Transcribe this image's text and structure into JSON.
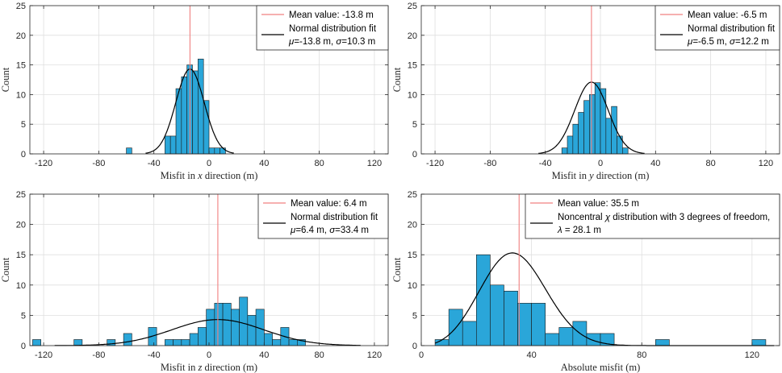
{
  "colors": {
    "bar": "#2aa6d9",
    "mean": "#f08080",
    "fit": "#000000",
    "grid": "#dfdfdf"
  },
  "chart_data": [
    {
      "type": "bar",
      "title": "",
      "xlabel": "Misfit in x direction (m)",
      "xlabel_parts": [
        "Misfit in ",
        "x",
        " direction (m)"
      ],
      "ylabel": "Count",
      "xlim": [
        -130,
        130
      ],
      "ylim": [
        0,
        25
      ],
      "xticks": [
        -120,
        -80,
        -40,
        0,
        40,
        80,
        120
      ],
      "yticks": [
        0,
        5,
        10,
        15,
        20,
        25
      ],
      "bin_edges": [
        -60,
        -56,
        -52,
        -48,
        -44,
        -40,
        -36,
        -32,
        -28,
        -24,
        -20,
        -16,
        -12,
        -8,
        -4,
        0,
        4,
        8,
        12,
        16
      ],
      "counts": [
        1,
        0,
        0,
        0,
        0,
        0,
        0,
        3,
        3,
        11,
        13,
        15,
        14,
        16,
        9,
        1,
        1,
        1,
        0
      ],
      "mean": -13.8,
      "fit": {
        "kind": "normal",
        "mu": -13.8,
        "sigma": 10.3,
        "peak": 14.3,
        "range": [
          -46,
          18
        ]
      },
      "legend": {
        "mean_label": "Mean value: -13.8 m",
        "fit_label": "Normal distribution fit",
        "fit_params_parts": [
          "μ",
          "=-13.8 m, ",
          "σ",
          "=10.3 m"
        ]
      }
    },
    {
      "type": "bar",
      "title": "",
      "xlabel": "Misfit in y direction (m)",
      "xlabel_parts": [
        "Misfit in ",
        "y",
        " direction (m)"
      ],
      "ylabel": "Count",
      "xlim": [
        -130,
        130
      ],
      "ylim": [
        0,
        25
      ],
      "xticks": [
        -120,
        -80,
        -40,
        0,
        40,
        80,
        120
      ],
      "yticks": [
        0,
        5,
        10,
        15,
        20,
        25
      ],
      "bin_edges": [
        -28,
        -24,
        -20,
        -16,
        -12,
        -8,
        -4,
        0,
        4,
        8,
        12,
        16,
        20
      ],
      "counts": [
        1,
        3,
        5,
        7,
        9,
        10,
        12,
        11,
        6,
        8,
        3,
        1
      ],
      "mean": -6.5,
      "fit": {
        "kind": "normal",
        "mu": -6.5,
        "sigma": 12.2,
        "peak": 12.1,
        "range": [
          -45,
          32
        ]
      },
      "legend": {
        "mean_label": "Mean value: -6.5 m",
        "fit_label": "Normal distribution fit",
        "fit_params_parts": [
          "μ",
          "=-6.5 m, ",
          "σ",
          "=12.2 m"
        ]
      }
    },
    {
      "type": "bar",
      "title": "",
      "xlabel": "Misfit in z direction (m)",
      "xlabel_parts": [
        "Misfit in ",
        "z",
        " direction (m)"
      ],
      "ylabel": "Count",
      "xlim": [
        -130,
        130
      ],
      "ylim": [
        0,
        25
      ],
      "xticks": [
        -120,
        -80,
        -40,
        0,
        40,
        80,
        120
      ],
      "yticks": [
        0,
        5,
        10,
        15,
        20,
        25
      ],
      "bin_edges": [
        -128,
        -122,
        -116,
        -110,
        -104,
        -98,
        -92,
        -86,
        -80,
        -74,
        -68,
        -62,
        -56,
        -50,
        -44,
        -38,
        -32,
        -26,
        -20,
        -14,
        -8,
        -2,
        4,
        10,
        16,
        22,
        28,
        34,
        40,
        46,
        52,
        58,
        64,
        70
      ],
      "counts": [
        1,
        0,
        0,
        0,
        0,
        1,
        0,
        0,
        0,
        1,
        0,
        2,
        0,
        0,
        3,
        0,
        1,
        1,
        1,
        2,
        3,
        6,
        7,
        7,
        6,
        8,
        5,
        6,
        2,
        1,
        3,
        1,
        1
      ],
      "mean": 6.4,
      "fit": {
        "kind": "normal",
        "mu": 6.4,
        "sigma": 33.4,
        "peak": 4.3,
        "range": [
          -112,
          110
        ]
      },
      "legend": {
        "mean_label": "Mean value: 6.4 m",
        "fit_label": "Normal distribution fit",
        "fit_params_parts": [
          "μ",
          "=6.4 m, ",
          "σ",
          "=33.4 m"
        ]
      }
    },
    {
      "type": "bar",
      "title": "",
      "xlabel": "Absolute misfit (m)",
      "xlabel_parts": [
        "Absolute misfit (m)"
      ],
      "ylabel": "Count",
      "xlim": [
        0,
        130
      ],
      "ylim": [
        0,
        25
      ],
      "xticks": [
        0,
        40,
        80,
        120
      ],
      "yticks": [
        0,
        5,
        10,
        15,
        20,
        25
      ],
      "bin_edges": [
        5,
        10,
        15,
        20,
        25,
        30,
        35,
        40,
        45,
        50,
        55,
        60,
        65,
        70,
        75,
        80,
        85,
        90,
        95,
        100,
        105,
        110,
        115,
        120,
        125
      ],
      "counts": [
        1,
        6,
        4,
        15,
        10,
        9,
        7,
        7,
        2,
        3,
        4,
        2,
        2,
        0,
        0,
        0,
        1,
        0,
        0,
        0,
        0,
        0,
        0,
        1
      ],
      "mean": 35.5,
      "fit": {
        "kind": "noncentral-chi",
        "dof": 3,
        "lambda": 28.1,
        "peak": 15.3,
        "range": [
          5,
          128
        ]
      },
      "legend": {
        "mean_label": "Mean value: 35.5 m",
        "fit_label_parts": [
          "Noncentral ",
          "χ",
          " distribution with 3 degrees of freedom,"
        ],
        "fit_params_parts": [
          "λ",
          " = 28.1 m"
        ]
      }
    }
  ]
}
